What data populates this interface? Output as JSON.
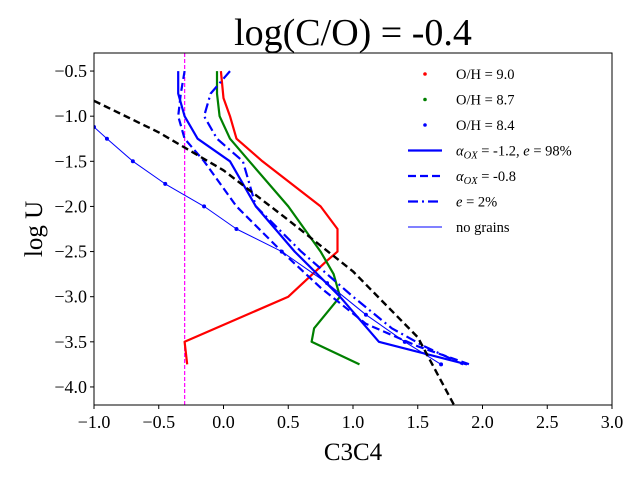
{
  "chart_data": {
    "type": "line",
    "title": "log(C/O) = -0.4",
    "xlabel": "C3C4",
    "ylabel": "log U",
    "xlim": [
      -1.0,
      3.0
    ],
    "ylim": [
      -4.2,
      -0.3
    ],
    "xticks": [
      -1.0,
      -0.5,
      0.0,
      0.5,
      1.0,
      1.5,
      2.0,
      2.5,
      3.0
    ],
    "yticks": [
      -0.5,
      -1.0,
      -1.5,
      -2.0,
      -2.5,
      -3.0,
      -3.5,
      -4.0
    ],
    "grid": false,
    "legend_position": "top-right",
    "colors": {
      "oh90": "#ff0000",
      "oh87": "#008000",
      "oh84": "#0000ff",
      "black": "#000000",
      "magenta": "#ff00ff"
    },
    "legend": [
      {
        "label": "O/H = 9.0",
        "symbol": "dot",
        "color": "#ff0000"
      },
      {
        "label": "O/H = 8.7",
        "symbol": "dot",
        "color": "#008000"
      },
      {
        "label": "O/H = 8.4",
        "symbol": "dot",
        "color": "#0000ff"
      },
      {
        "label_parts": [
          {
            "t": "α",
            "i": true
          },
          {
            "t": "OX",
            "i": true,
            "sub": true
          },
          {
            "t": " = -1.2, ",
            "i": false
          },
          {
            "t": "e",
            "i": true
          },
          {
            "t": " = 98%",
            "i": false
          }
        ],
        "symbol": "solid",
        "color": "#0000ff"
      },
      {
        "label_parts": [
          {
            "t": "α",
            "i": true
          },
          {
            "t": "OX",
            "i": true,
            "sub": true
          },
          {
            "t": " = -0.8",
            "i": false
          }
        ],
        "symbol": "dashed",
        "color": "#0000ff"
      },
      {
        "label_parts": [
          {
            "t": "e",
            "i": true
          },
          {
            "t": " = 2%",
            "i": false
          }
        ],
        "symbol": "dashdot",
        "color": "#0000ff"
      },
      {
        "label": "no grains",
        "symbol": "thin",
        "color": "#0000ff"
      }
    ],
    "series": [
      {
        "metallicity": "9.0",
        "style": "solid",
        "color": "#ff0000",
        "x": [
          -0.02,
          0.0,
          0.05,
          0.1,
          0.3,
          0.75,
          0.88,
          0.88,
          0.8,
          0.5,
          -0.3,
          -0.28
        ],
        "y": [
          -0.5,
          -0.8,
          -1.0,
          -1.25,
          -1.5,
          -2.0,
          -2.25,
          -2.5,
          -2.6,
          -3.0,
          -3.5,
          -3.75
        ]
      },
      {
        "metallicity": "8.7",
        "style": "solid",
        "color": "#008000",
        "x": [
          -0.05,
          -0.05,
          -0.03,
          0.05,
          0.2,
          0.5,
          0.75,
          0.85,
          0.9,
          0.7,
          0.68,
          1.05
        ],
        "y": [
          -0.5,
          -0.75,
          -1.0,
          -1.25,
          -1.5,
          -2.0,
          -2.5,
          -2.75,
          -3.0,
          -3.35,
          -3.5,
          -3.75
        ]
      },
      {
        "metallicity": "8.4",
        "style": "solid",
        "color": "#0000ff",
        "x": [
          -0.35,
          -0.35,
          -0.3,
          -0.2,
          0.05,
          0.25,
          0.55,
          0.9,
          1.2,
          1.88
        ],
        "y": [
          -0.5,
          -0.75,
          -1.0,
          -1.25,
          -1.5,
          -2.0,
          -2.5,
          -3.0,
          -3.5,
          -3.75
        ]
      },
      {
        "metallicity": "8.4",
        "style": "dashed",
        "color": "#0000ff",
        "x": [
          -0.3,
          -0.33,
          -0.35,
          -0.3,
          -0.15,
          0.1,
          0.45,
          0.75,
          1.1,
          1.5,
          1.9
        ],
        "y": [
          -0.5,
          -0.75,
          -1.0,
          -1.25,
          -1.5,
          -2.0,
          -2.5,
          -2.9,
          -3.3,
          -3.55,
          -3.75
        ]
      },
      {
        "metallicity": "8.4",
        "style": "dashdot",
        "color": "#0000ff",
        "x": [
          0.05,
          -0.1,
          -0.15,
          -0.05,
          0.15,
          0.25,
          0.6,
          1.0,
          1.3,
          1.55,
          1.85
        ],
        "y": [
          -0.5,
          -0.75,
          -1.0,
          -1.25,
          -1.5,
          -2.0,
          -2.5,
          -3.0,
          -3.35,
          -3.55,
          -3.75
        ]
      },
      {
        "metallicity": "8.4",
        "style": "thin",
        "color": "#0000ff",
        "x": [
          -1.0,
          -0.9,
          -0.7,
          -0.45,
          -0.15,
          0.1,
          0.45,
          0.8,
          1.1,
          1.4,
          1.68
        ],
        "y": [
          -1.12,
          -1.25,
          -1.5,
          -1.75,
          -2.0,
          -2.25,
          -2.5,
          -2.85,
          -3.2,
          -3.5,
          -3.75
        ]
      },
      {
        "name": "",
        "style": "dashed-black",
        "color": "#000000",
        "x": [
          -1.0,
          -0.5,
          0.0,
          0.5,
          1.0,
          1.5,
          1.78
        ],
        "y": [
          -0.83,
          -1.18,
          -1.6,
          -2.15,
          -2.72,
          -3.45,
          -4.2
        ]
      }
    ],
    "vertical_line": {
      "x": -0.3,
      "color": "#ff00ff",
      "style": "dashed"
    }
  }
}
